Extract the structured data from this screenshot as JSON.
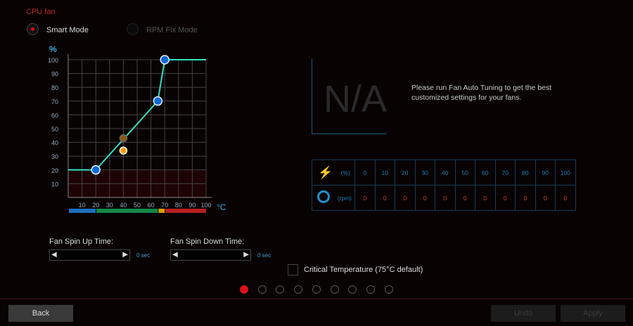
{
  "title": "CPU fan",
  "modes": [
    {
      "label": "Smart Mode",
      "selected": true
    },
    {
      "label": "RPM Fix Mode",
      "selected": false
    }
  ],
  "chart_data": {
    "type": "line",
    "ylabel": "%",
    "xlabel": "°C",
    "xlim": [
      0,
      100
    ],
    "ylim": [
      0,
      100
    ],
    "x_ticks": [
      "10",
      "20",
      "30",
      "40",
      "50",
      "60",
      "70",
      "80",
      "90",
      "100"
    ],
    "y_ticks": [
      "10",
      "20",
      "30",
      "40",
      "50",
      "60",
      "70",
      "80",
      "90",
      "100"
    ],
    "grid": true,
    "curve": [
      {
        "x": 0,
        "y": 20
      },
      {
        "x": 20,
        "y": 20
      },
      {
        "x": 65,
        "y": 70
      },
      {
        "x": 70,
        "y": 100
      },
      {
        "x": 100,
        "y": 100
      }
    ],
    "control_points": [
      {
        "x": 20,
        "y": 20
      },
      {
        "x": 65,
        "y": 70
      },
      {
        "x": 70,
        "y": 100
      }
    ],
    "current_point": {
      "x": 40,
      "y": 34
    },
    "target_point": {
      "x": 40,
      "y": 43
    },
    "line_color": "#2ee0c0",
    "temp_zones": [
      {
        "from": 0,
        "to": 20,
        "color": "#1e6fc0"
      },
      {
        "from": 20,
        "to": 65,
        "color": "#13884a"
      },
      {
        "from": 65,
        "to": 70,
        "color": "#d8a000"
      },
      {
        "from": 70,
        "to": 100,
        "color": "#b82020"
      }
    ]
  },
  "na_text": "N/A",
  "message": "Please run Fan Auto Tuning to get the best customized settings for your fans.",
  "table": {
    "pct_label": "(%)",
    "rpm_label": "(rpm)",
    "pct": [
      "0",
      "10",
      "20",
      "30",
      "40",
      "50",
      "60",
      "70",
      "80",
      "90",
      "100"
    ],
    "rpm": [
      "0",
      "0",
      "0",
      "0",
      "0",
      "0",
      "0",
      "0",
      "0",
      "0",
      "0"
    ]
  },
  "spin_up": {
    "label": "Fan Spin Up Time:",
    "value": "0 sec"
  },
  "spin_down": {
    "label": "Fan Spin Down Time:",
    "value": "0 sec"
  },
  "critical": {
    "label": "Critical Temperature (75°C default)",
    "checked": false
  },
  "pages": {
    "count": 9,
    "active": 0
  },
  "buttons": {
    "back": "Back",
    "undo": "Undo",
    "apply": "Apply"
  }
}
